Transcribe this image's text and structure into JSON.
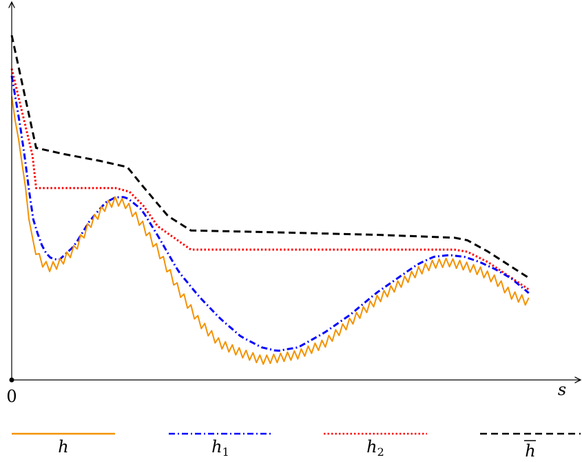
{
  "chart_data": {
    "type": "line",
    "xlabel": "s",
    "x_tick_labels": [
      "0"
    ],
    "axes": {
      "x_arrow": true,
      "y_arrow": true,
      "y_ticks": "none",
      "grid": false
    },
    "legend": {
      "placement": "bottom",
      "entries": [
        "h",
        "h1",
        "h2",
        "hbar"
      ]
    },
    "colors": {
      "h": "#f39200",
      "h1": "#0000ff",
      "h2": "#ff0000",
      "hbar": "#000000",
      "axis": "#000000"
    },
    "xlim": [
      0,
      1
    ],
    "ylim": [
      0,
      1
    ],
    "series": [
      {
        "id": "hbar",
        "name": "h̅",
        "style": "dashed",
        "x": [
          0,
          0.047,
          0.1,
          0.17,
          0.222,
          0.253,
          0.3,
          0.344,
          0.5,
          0.7,
          0.85,
          0.875,
          0.914,
          0.993
        ],
        "y": [
          0.952,
          0.641,
          0.624,
          0.605,
          0.588,
          0.533,
          0.453,
          0.413,
          0.408,
          0.401,
          0.393,
          0.386,
          0.355,
          0.282
        ]
      },
      {
        "id": "h2",
        "name": "h2",
        "style": "dotted",
        "x": [
          0,
          0.04,
          0.047,
          0.07,
          0.2,
          0.226,
          0.253,
          0.28,
          0.344,
          0.5,
          0.7,
          0.85,
          0.875,
          0.914,
          0.993
        ],
        "y": [
          0.86,
          0.62,
          0.53,
          0.53,
          0.53,
          0.52,
          0.481,
          0.425,
          0.36,
          0.36,
          0.36,
          0.36,
          0.354,
          0.326,
          0.25
        ]
      },
      {
        "id": "h1",
        "name": "h1",
        "style": "dashdot",
        "x": [
          0,
          0.02,
          0.04,
          0.055,
          0.07,
          0.09,
          0.12,
          0.15,
          0.18,
          0.2,
          0.22,
          0.25,
          0.28,
          0.32,
          0.36,
          0.4,
          0.44,
          0.48,
          0.51,
          0.55,
          0.6,
          0.65,
          0.7,
          0.74,
          0.78,
          0.81,
          0.84,
          0.87,
          0.9,
          0.93,
          0.96,
          0.993
        ],
        "y": [
          0.84,
          0.67,
          0.45,
          0.38,
          0.34,
          0.33,
          0.37,
          0.44,
          0.49,
          0.505,
          0.505,
          0.47,
          0.4,
          0.3,
          0.23,
          0.17,
          0.12,
          0.09,
          0.08,
          0.09,
          0.13,
          0.18,
          0.24,
          0.28,
          0.32,
          0.34,
          0.345,
          0.34,
          0.325,
          0.305,
          0.28,
          0.24
        ]
      },
      {
        "id": "h",
        "name": "h",
        "style": "solid",
        "x": [
          0,
          0.02,
          0.04,
          0.055,
          0.07,
          0.09,
          0.12,
          0.15,
          0.18,
          0.2,
          0.22,
          0.25,
          0.28,
          0.32,
          0.36,
          0.4,
          0.44,
          0.48,
          0.51,
          0.55,
          0.6,
          0.65,
          0.7,
          0.74,
          0.78,
          0.81,
          0.84,
          0.87,
          0.9,
          0.93,
          0.96,
          0.993
        ],
        "y": [
          0.78,
          0.6,
          0.38,
          0.33,
          0.31,
          0.32,
          0.36,
          0.43,
          0.48,
          0.495,
          0.485,
          0.43,
          0.36,
          0.25,
          0.16,
          0.1,
          0.075,
          0.055,
          0.06,
          0.07,
          0.1,
          0.16,
          0.22,
          0.26,
          0.3,
          0.32,
          0.325,
          0.315,
          0.3,
          0.275,
          0.235,
          0.215
        ]
      }
    ]
  }
}
